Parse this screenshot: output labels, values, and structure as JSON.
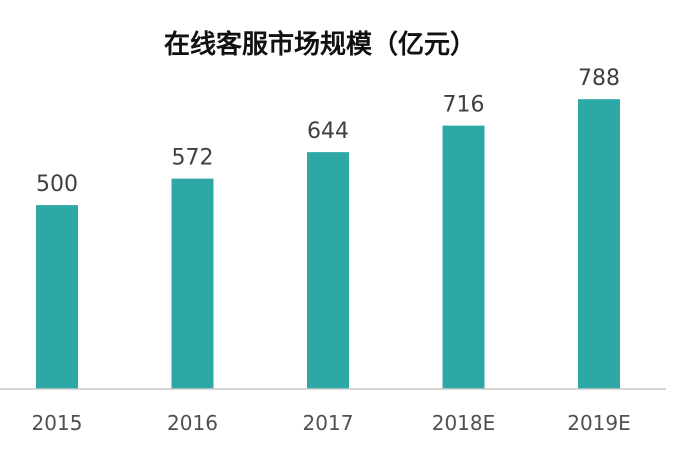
{
  "chart_data": {
    "type": "bar",
    "title": "在线客服市场规模（亿元）",
    "categories": [
      "2015",
      "2016",
      "2017",
      "2018E",
      "2019E"
    ],
    "values": [
      500,
      572,
      644,
      716,
      788
    ],
    "xlabel": "",
    "ylabel": "",
    "ylim": [
      0,
      800
    ],
    "grid": false,
    "legend": "none",
    "bar_color": "#2EA8A6",
    "axis_color": "#C8C8C8"
  }
}
